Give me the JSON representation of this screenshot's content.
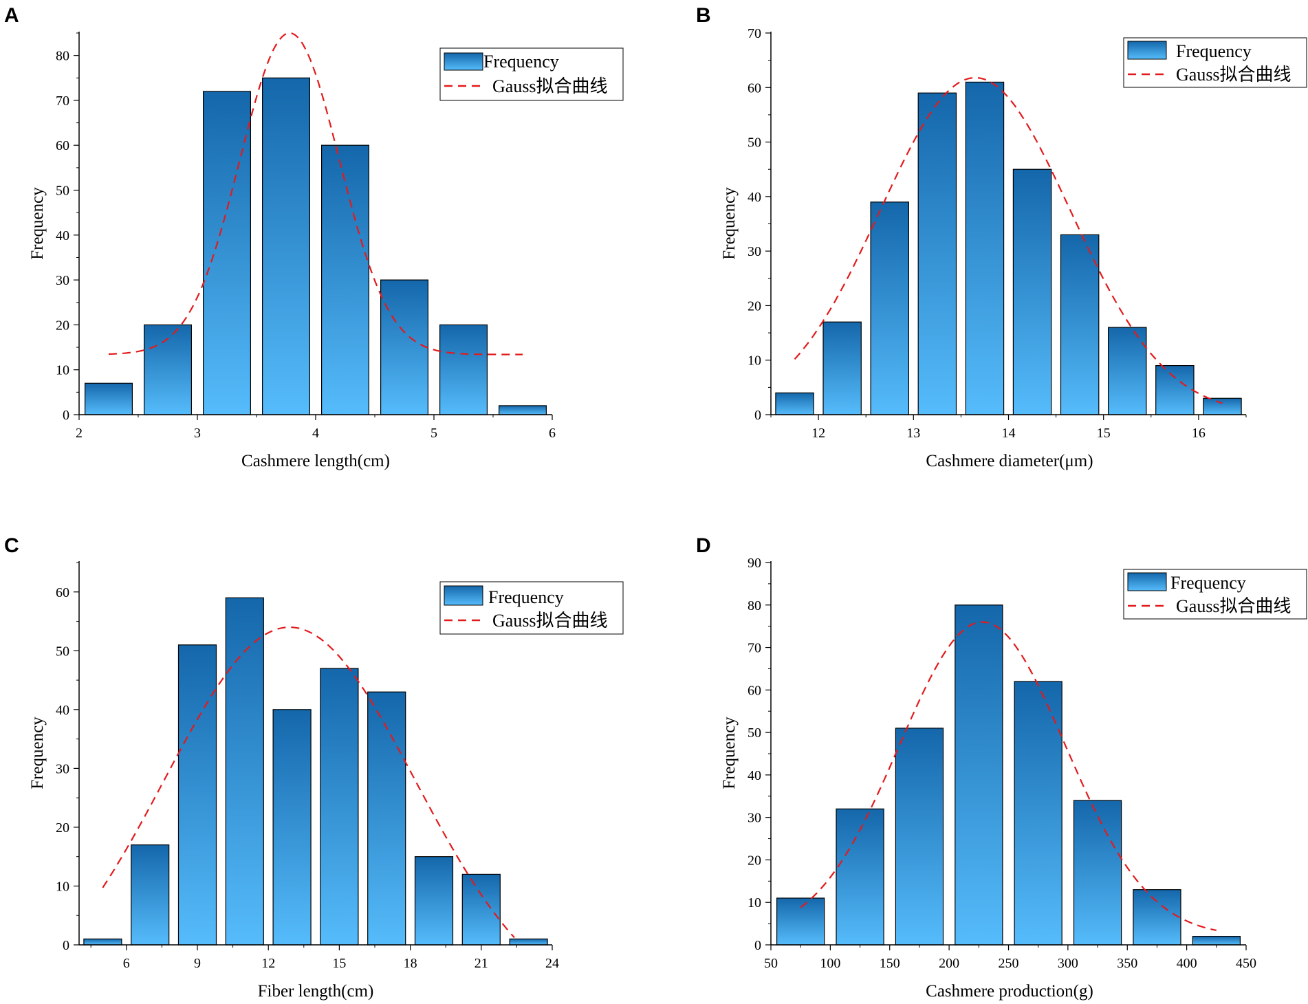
{
  "colors": {
    "bar_top": "#1467aa",
    "bar_bottom": "#56bcfb",
    "bar_stroke": "#000000",
    "fit_line": "#e31a1c",
    "axis": "#000000"
  },
  "chart_data": [
    {
      "panel": "A",
      "type": "bar",
      "title": "",
      "xlabel": "Cashmere length(cm)",
      "ylabel": "Frequency",
      "xlim": [
        2,
        6
      ],
      "ylim": [
        0,
        85
      ],
      "xticks": [
        2,
        3,
        4,
        5,
        6
      ],
      "yticks": [
        0,
        10,
        20,
        30,
        40,
        50,
        60,
        70,
        80
      ],
      "bins": [
        {
          "center": 2.25,
          "value": 7
        },
        {
          "center": 2.75,
          "value": 20
        },
        {
          "center": 3.25,
          "value": 72
        },
        {
          "center": 3.75,
          "value": 75
        },
        {
          "center": 4.25,
          "value": 60
        },
        {
          "center": 4.75,
          "value": 30
        },
        {
          "center": 5.25,
          "value": 20
        },
        {
          "center": 5.75,
          "value": 2
        }
      ],
      "bin_width": 0.5,
      "fit": {
        "name": "Gauss拟合曲线",
        "y0": 13.4,
        "amplitude": 71.6,
        "mean": 3.78,
        "sigma": 0.42,
        "x_range": [
          2.25,
          5.75
        ]
      },
      "legend": {
        "bars": "Frequency",
        "line": "Gauss拟合曲线",
        "position": "top-right"
      },
      "grid": false
    },
    {
      "panel": "B",
      "type": "bar",
      "title": "",
      "xlabel": "Cashmere diameter(μm)",
      "ylabel": "Frequency",
      "xlim": [
        11.5,
        16.5
      ],
      "ylim": [
        0,
        70
      ],
      "xticks": [
        12,
        13,
        14,
        15,
        16
      ],
      "yticks": [
        0,
        10,
        20,
        30,
        40,
        50,
        60,
        70
      ],
      "bins": [
        {
          "center": 11.75,
          "value": 4
        },
        {
          "center": 12.25,
          "value": 17
        },
        {
          "center": 12.75,
          "value": 39
        },
        {
          "center": 13.25,
          "value": 59
        },
        {
          "center": 13.75,
          "value": 61
        },
        {
          "center": 14.25,
          "value": 45
        },
        {
          "center": 14.75,
          "value": 33
        },
        {
          "center": 15.25,
          "value": 16
        },
        {
          "center": 15.75,
          "value": 9
        },
        {
          "center": 16.25,
          "value": 3
        }
      ],
      "bin_width": 0.5,
      "fit": {
        "name": "Gauss拟合曲线",
        "y0": 0,
        "amplitude": 61.8,
        "mean": 13.65,
        "sigma": 1.0,
        "x_range": [
          11.75,
          16.25
        ]
      },
      "legend": {
        "bars": "Frequency",
        "line": "Gauss拟合曲线",
        "position": "top-right"
      },
      "grid": false
    },
    {
      "panel": "C",
      "type": "bar",
      "title": "",
      "xlabel": "Fiber length(cm)",
      "ylabel": "Frequency",
      "xlim": [
        4,
        24
      ],
      "ylim": [
        0,
        65
      ],
      "xticks": [
        6,
        9,
        12,
        15,
        18,
        21,
        24
      ],
      "yticks": [
        0,
        10,
        20,
        30,
        40,
        50,
        60
      ],
      "bins": [
        {
          "center": 5.0,
          "value": 1
        },
        {
          "center": 7.0,
          "value": 17
        },
        {
          "center": 9.0,
          "value": 51
        },
        {
          "center": 11.0,
          "value": 59
        },
        {
          "center": 13.0,
          "value": 40
        },
        {
          "center": 15.0,
          "value": 47
        },
        {
          "center": 17.0,
          "value": 43
        },
        {
          "center": 19.0,
          "value": 15
        },
        {
          "center": 21.0,
          "value": 12
        },
        {
          "center": 23.0,
          "value": 1
        }
      ],
      "bin_width": 2,
      "fit": {
        "name": "Gauss拟合曲线",
        "y0": -12,
        "amplitude": 66,
        "mean": 12.9,
        "sigma": 5.3,
        "x_range": [
          5.0,
          22.4
        ]
      },
      "legend": {
        "bars": "Frequency",
        "line": "Gauss拟合曲线",
        "position": "top-right"
      },
      "grid": false
    },
    {
      "panel": "D",
      "type": "bar",
      "title": "",
      "xlabel": "Cashmere production(g)",
      "ylabel": "Frequency",
      "xlim": [
        50,
        450
      ],
      "ylim": [
        0,
        90
      ],
      "xticks": [
        50,
        100,
        150,
        200,
        250,
        300,
        350,
        400,
        450
      ],
      "yticks": [
        0,
        10,
        20,
        30,
        40,
        50,
        60,
        70,
        80,
        90
      ],
      "bins": [
        {
          "center": 75,
          "value": 11
        },
        {
          "center": 125,
          "value": 32
        },
        {
          "center": 175,
          "value": 51
        },
        {
          "center": 225,
          "value": 80
        },
        {
          "center": 275,
          "value": 62
        },
        {
          "center": 325,
          "value": 34
        },
        {
          "center": 375,
          "value": 13
        },
        {
          "center": 425,
          "value": 2
        }
      ],
      "bin_width": 50,
      "fit": {
        "name": "Gauss拟合曲线",
        "y0": 2,
        "amplitude": 74,
        "mean": 228,
        "sigma": 70,
        "x_range": [
          75,
          425
        ]
      },
      "legend": {
        "bars": "Frequency",
        "line": "Gauss拟合曲线",
        "position": "top-right"
      },
      "grid": false
    }
  ]
}
